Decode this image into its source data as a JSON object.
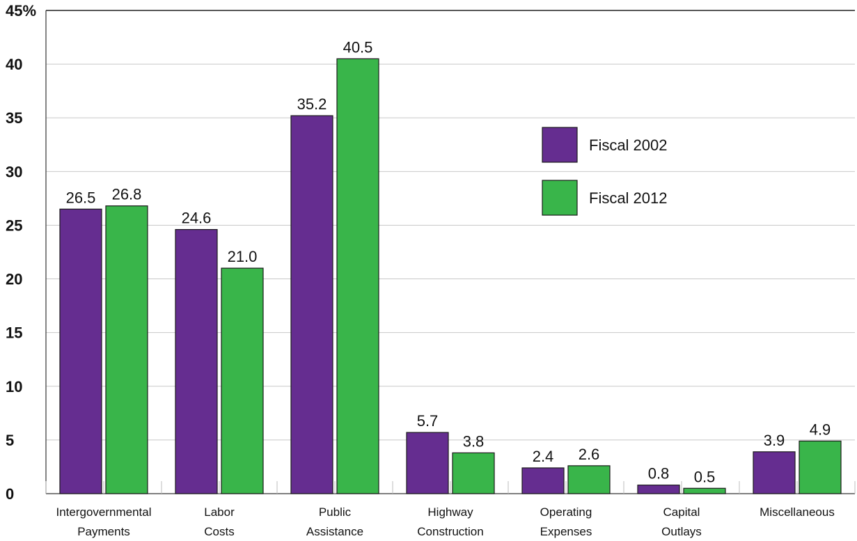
{
  "chart_data": {
    "type": "bar",
    "categories": [
      [
        "Intergovernmental",
        "Payments"
      ],
      [
        "Labor",
        "Costs"
      ],
      [
        "Public",
        "Assistance"
      ],
      [
        "Highway",
        "Construction"
      ],
      [
        "Operating",
        "Expenses"
      ],
      [
        "Capital",
        "Outlays"
      ],
      [
        "Miscellaneous"
      ]
    ],
    "series": [
      {
        "name": "Fiscal 2002",
        "color": "#652d90",
        "values": [
          26.5,
          24.6,
          35.2,
          5.7,
          2.4,
          0.8,
          3.9
        ],
        "labels": [
          "26.5",
          "24.6",
          "35.2",
          "5.7",
          "2.4",
          "0.8",
          "3.9"
        ]
      },
      {
        "name": "Fiscal 2012",
        "color": "#39b54a",
        "values": [
          26.8,
          21.0,
          40.5,
          3.8,
          2.6,
          0.5,
          4.9
        ],
        "labels": [
          "26.8",
          "21.0",
          "40.5",
          "3.8",
          "2.6",
          "0.5",
          "4.9"
        ]
      }
    ],
    "ylim": [
      0,
      45
    ],
    "yticks": [
      0,
      5,
      10,
      15,
      20,
      25,
      30,
      35,
      40,
      45
    ],
    "ytick_labels": [
      "0",
      "5",
      "10",
      "15",
      "20",
      "25",
      "30",
      "35",
      "40",
      "45%"
    ],
    "grid": true,
    "legend_position": "upper-right",
    "title": "",
    "xlabel": "",
    "ylabel": ""
  }
}
